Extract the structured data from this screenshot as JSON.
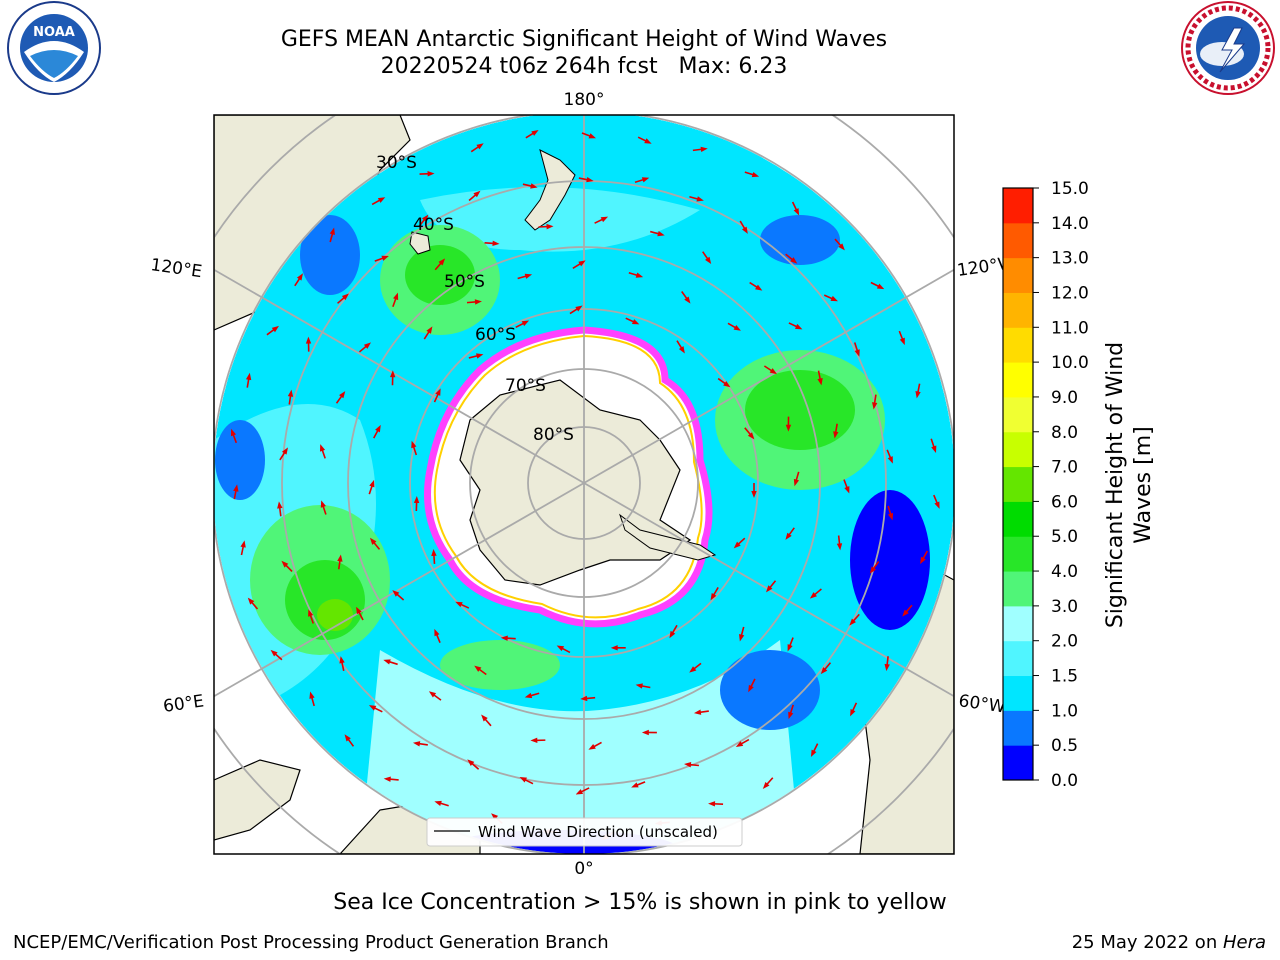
{
  "header": {
    "title_line1": "GEFS MEAN Antarctic Significant Height of Wind Waves",
    "title_line2": "20220524 t06z 264h fcst   Max: 6.23"
  },
  "logos": {
    "left": "NOAA",
    "left_ring_text": "NATIONAL OCEANIC AND ATMOSPHERIC ADMINISTRATION · U.S. DEPARTMENT OF COMMERCE",
    "right_ring_text": "NATIONAL WEATHER SERVICE"
  },
  "map": {
    "projection": "south-polar-stereographic",
    "longitude_labels": {
      "top": "180°",
      "bottom": "0°",
      "upper_left": "120°E",
      "upper_right": "120°W",
      "lower_left": "60°E",
      "lower_right": "60°W"
    },
    "latitude_labels": [
      "30°S",
      "40°S",
      "50°S",
      "60°S",
      "70°S",
      "80°S"
    ],
    "legend_label": "Wind Wave Direction (unscaled)"
  },
  "colorbar": {
    "label_line1": "Significant Height of Wind",
    "label_line2": "Waves [m]",
    "ticks": [
      "0.0",
      "0.5",
      "1.0",
      "1.5",
      "2.0",
      "3.0",
      "4.0",
      "5.0",
      "6.0",
      "7.0",
      "8.0",
      "9.0",
      "10.0",
      "11.0",
      "12.0",
      "13.0",
      "14.0",
      "15.0"
    ],
    "colors": [
      "#0000ff",
      "#0a78ff",
      "#00e6ff",
      "#50f5ff",
      "#a0ffff",
      "#50f578",
      "#28e628",
      "#00dc00",
      "#64e600",
      "#c8ff00",
      "#f0ff32",
      "#ffff00",
      "#ffdc00",
      "#ffb400",
      "#ff8c00",
      "#ff5a00",
      "#ff1e00"
    ]
  },
  "caption": "Sea Ice Concentration > 15% is shown in pink to yellow",
  "footer": {
    "left": "NCEP/EMC/Verification Post Processing Product Generation Branch",
    "right_prefix": "25 May 2022 on ",
    "right_host": "Hera"
  }
}
